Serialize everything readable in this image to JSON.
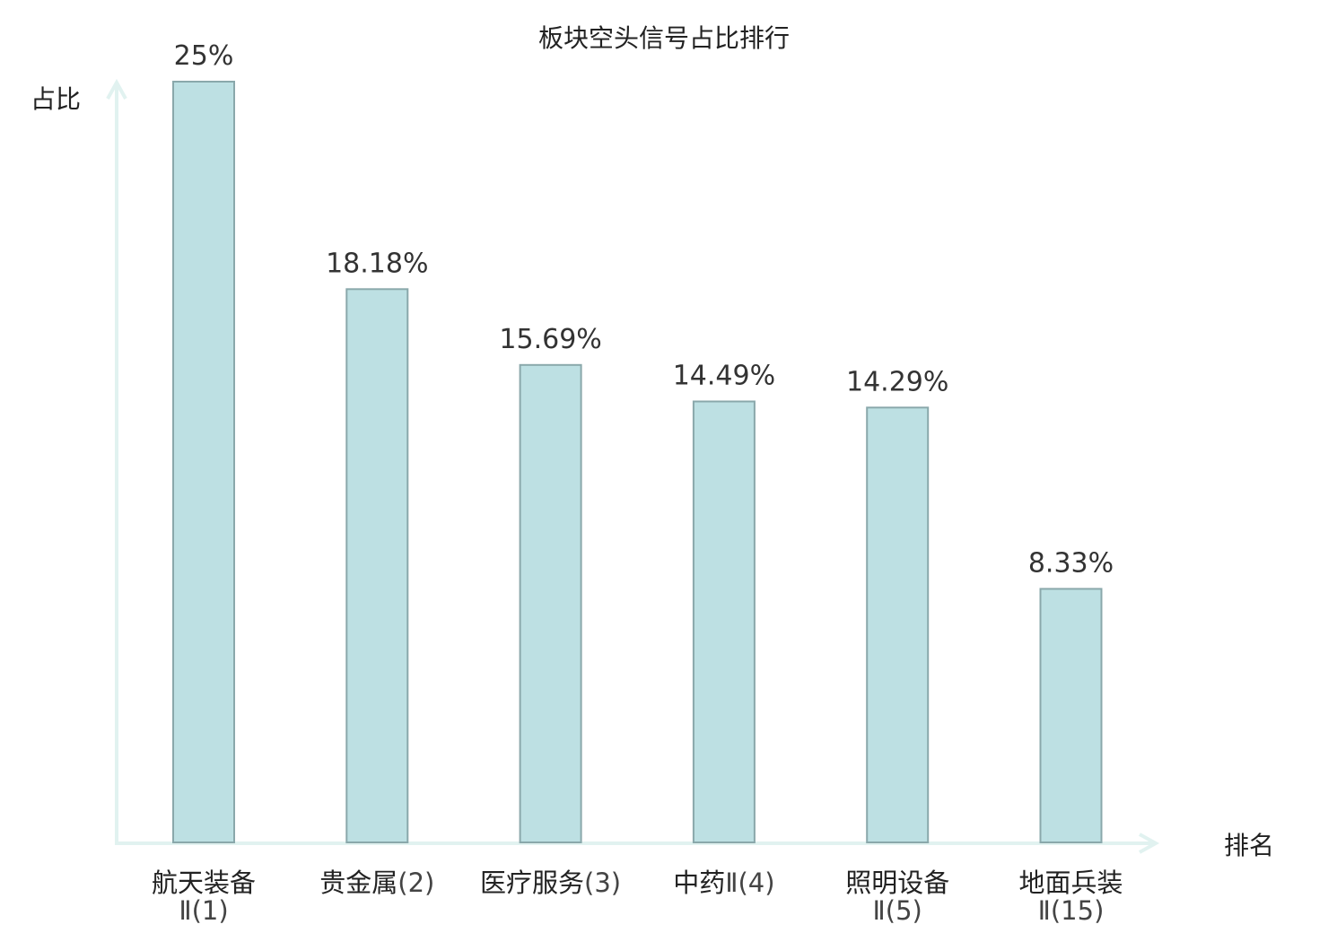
{
  "chart_data": {
    "type": "bar",
    "title": "板块空头信号占比排行",
    "ylabel": "占比",
    "xlabel": "排名",
    "ylim": [
      0,
      25
    ],
    "grid": false,
    "legend": "none",
    "categories": [
      {
        "name": "航天装备",
        "suffix": "Ⅱ(1)",
        "highlight": false
      },
      {
        "name": "贵金属",
        "suffix": "(2)",
        "highlight": false
      },
      {
        "name": "医疗服务",
        "suffix": "(3)",
        "highlight": false
      },
      {
        "name": "中药",
        "suffix": "Ⅱ(4)",
        "highlight": false
      },
      {
        "name": "照明设备",
        "suffix": "Ⅱ(5)",
        "highlight": false
      },
      {
        "name": "地面兵装",
        "suffix": "Ⅱ(15)",
        "highlight": true
      }
    ],
    "values": [
      25,
      18.18,
      15.69,
      14.49,
      14.29,
      8.33
    ],
    "value_labels": [
      "25%",
      "18.18%",
      "15.69%",
      "14.49%",
      "14.29%",
      "8.33%"
    ],
    "colors": {
      "bar_fill": "#bde0e3",
      "bar_stroke": "#8aa8ab",
      "axis": "#e1f2f0",
      "highlight_text": "#e01010",
      "text": "#222222"
    }
  }
}
